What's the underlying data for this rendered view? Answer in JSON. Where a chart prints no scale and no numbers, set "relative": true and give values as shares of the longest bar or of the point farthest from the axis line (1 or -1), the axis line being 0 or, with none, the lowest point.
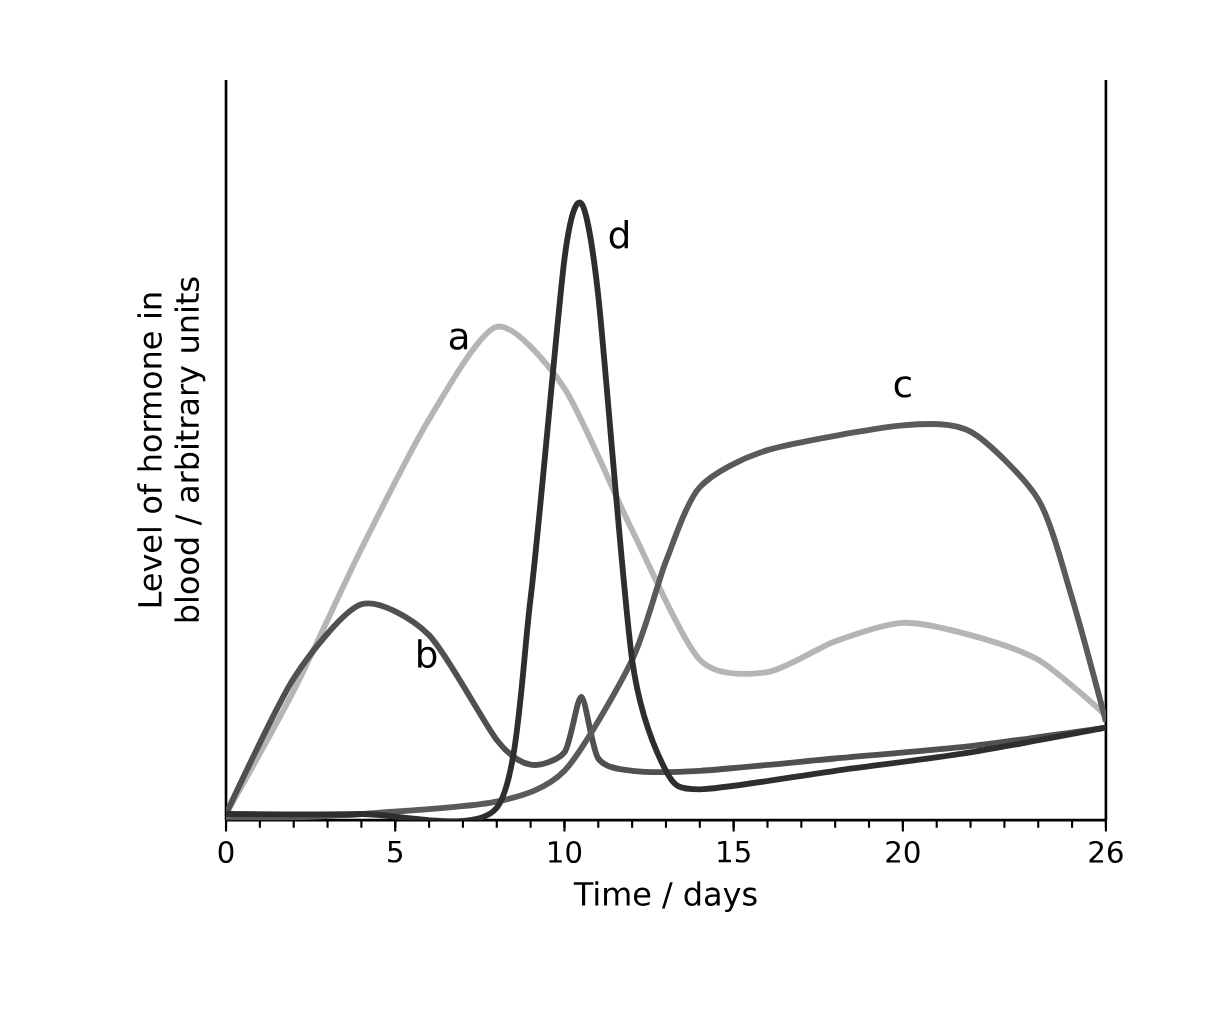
{
  "chart_data": {
    "type": "line",
    "xlabel": "Time / days",
    "ylabel": "Level of hormone in blood / arbitrary units",
    "relative": true,
    "xlim": [
      0,
      26
    ],
    "xticks": [
      0,
      5,
      10,
      15,
      20,
      26
    ],
    "legend": false,
    "marker": "none",
    "series": [
      {
        "name": "a",
        "color": "#b5b5b5",
        "x": [
          0,
          2,
          4,
          6,
          8,
          10,
          12,
          14,
          16,
          18,
          20,
          22,
          24,
          26
        ],
        "values": [
          0.01,
          0.21,
          0.44,
          0.65,
          0.8,
          0.7,
          0.47,
          0.26,
          0.24,
          0.29,
          0.32,
          0.3,
          0.26,
          0.17
        ]
      },
      {
        "name": "b",
        "color": "#505050",
        "x": [
          0,
          2,
          4,
          6,
          8,
          9,
          10,
          10.5,
          11,
          12,
          14,
          18,
          22,
          26
        ],
        "values": [
          0.01,
          0.23,
          0.35,
          0.3,
          0.13,
          0.09,
          0.11,
          0.2,
          0.1,
          0.08,
          0.08,
          0.1,
          0.12,
          0.15
        ]
      },
      {
        "name": "c",
        "color": "#5a5a5a",
        "x": [
          0,
          4,
          8,
          10,
          12,
          13,
          14,
          16,
          20,
          22,
          24,
          25,
          26
        ],
        "values": [
          0,
          0.01,
          0.03,
          0.08,
          0.26,
          0.42,
          0.54,
          0.6,
          0.64,
          0.63,
          0.52,
          0.36,
          0.16
        ]
      },
      {
        "name": "d",
        "color": "#2e2e2e",
        "x": [
          0,
          4,
          8,
          9,
          10,
          10.5,
          11,
          12,
          13,
          14,
          18,
          22,
          26
        ],
        "values": [
          0.01,
          0.01,
          0.02,
          0.36,
          0.91,
          1.0,
          0.85,
          0.26,
          0.08,
          0.05,
          0.08,
          0.11,
          0.15
        ]
      }
    ]
  }
}
